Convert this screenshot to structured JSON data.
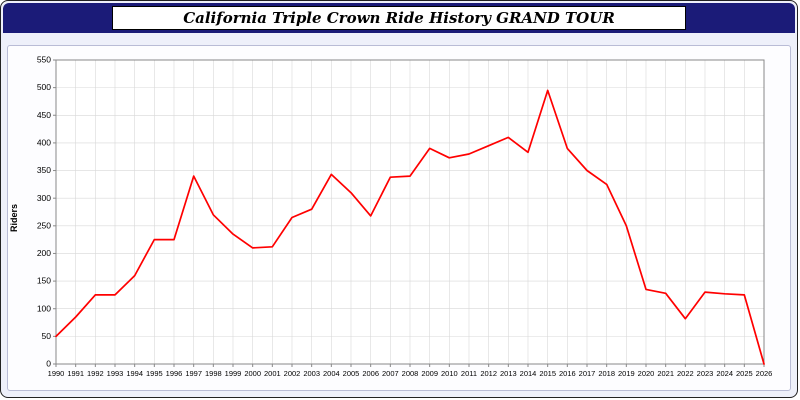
{
  "header": {
    "title": "California Triple Crown Ride History GRAND TOUR"
  },
  "colors": {
    "header_bg": "#1b1b78",
    "page_bg": "#eef0fa",
    "plot_bg": "#ffffff",
    "grid": "#d8d8d8",
    "axis_border": "#888888",
    "line": "#ff0000",
    "tick_text": "#000000"
  },
  "chart_data": {
    "type": "line",
    "title": "California Triple Crown Ride History GRAND TOUR",
    "xlabel": "",
    "ylabel": "Riders",
    "x": [
      1990,
      1991,
      1992,
      1993,
      1994,
      1995,
      1996,
      1997,
      1998,
      1999,
      2000,
      2001,
      2002,
      2003,
      2004,
      2005,
      2006,
      2007,
      2008,
      2009,
      2010,
      2011,
      2012,
      2013,
      2014,
      2015,
      2016,
      2017,
      2018,
      2019,
      2020,
      2021,
      2022,
      2023,
      2024,
      2025,
      2026
    ],
    "values": [
      50,
      85,
      125,
      125,
      160,
      225,
      225,
      340,
      270,
      235,
      210,
      212,
      265,
      280,
      343,
      310,
      268,
      338,
      340,
      390,
      373,
      380,
      395,
      410,
      383,
      495,
      390,
      350,
      325,
      250,
      135,
      128,
      82,
      130,
      127,
      125,
      0
    ],
    "ylim": [
      0,
      550
    ],
    "ytick_step": 50,
    "grid": true,
    "legend_position": "none",
    "series_name": "Riders"
  }
}
